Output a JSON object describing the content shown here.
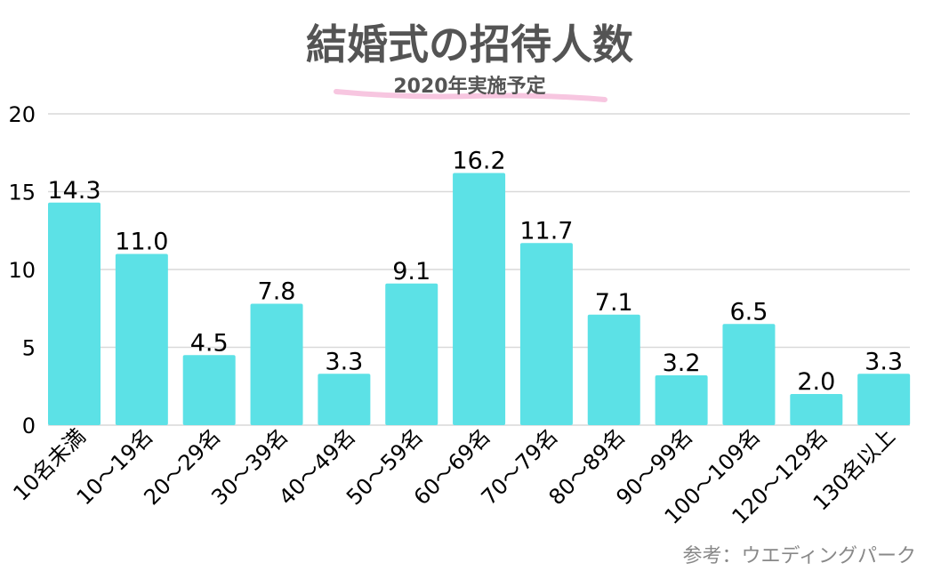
{
  "chart_data": {
    "type": "bar",
    "title": "結婚式の招待人数",
    "subtitle": "2020年実施予定",
    "source": "参考：ウエディングパーク",
    "xlabel": "",
    "ylabel": "",
    "ylim": [
      0,
      20
    ],
    "yticks": [
      0,
      5,
      10,
      15,
      20
    ],
    "grid": true,
    "categories": [
      "10名未満",
      "10〜19名",
      "20〜29名",
      "30〜39名",
      "40〜49名",
      "50〜59名",
      "60〜69名",
      "70〜79名",
      "80〜89名",
      "90〜99名",
      "100〜109名",
      "120〜129名",
      "130名以上"
    ],
    "values": [
      14.3,
      11.0,
      4.5,
      7.8,
      3.3,
      9.1,
      16.2,
      11.7,
      7.1,
      3.2,
      6.5,
      2.0,
      3.3
    ],
    "value_labels": [
      "14.3",
      "11.0",
      "4.5",
      "7.8",
      "3.3",
      "9.1",
      "16.2",
      "11.7",
      "7.1",
      "3.2",
      "6.5",
      "2.0",
      "3.3"
    ],
    "colors": {
      "bar": "#5ce1e6",
      "title": "#545454",
      "underline": "#f7c6e0",
      "grid": "#d9d9d9"
    }
  }
}
